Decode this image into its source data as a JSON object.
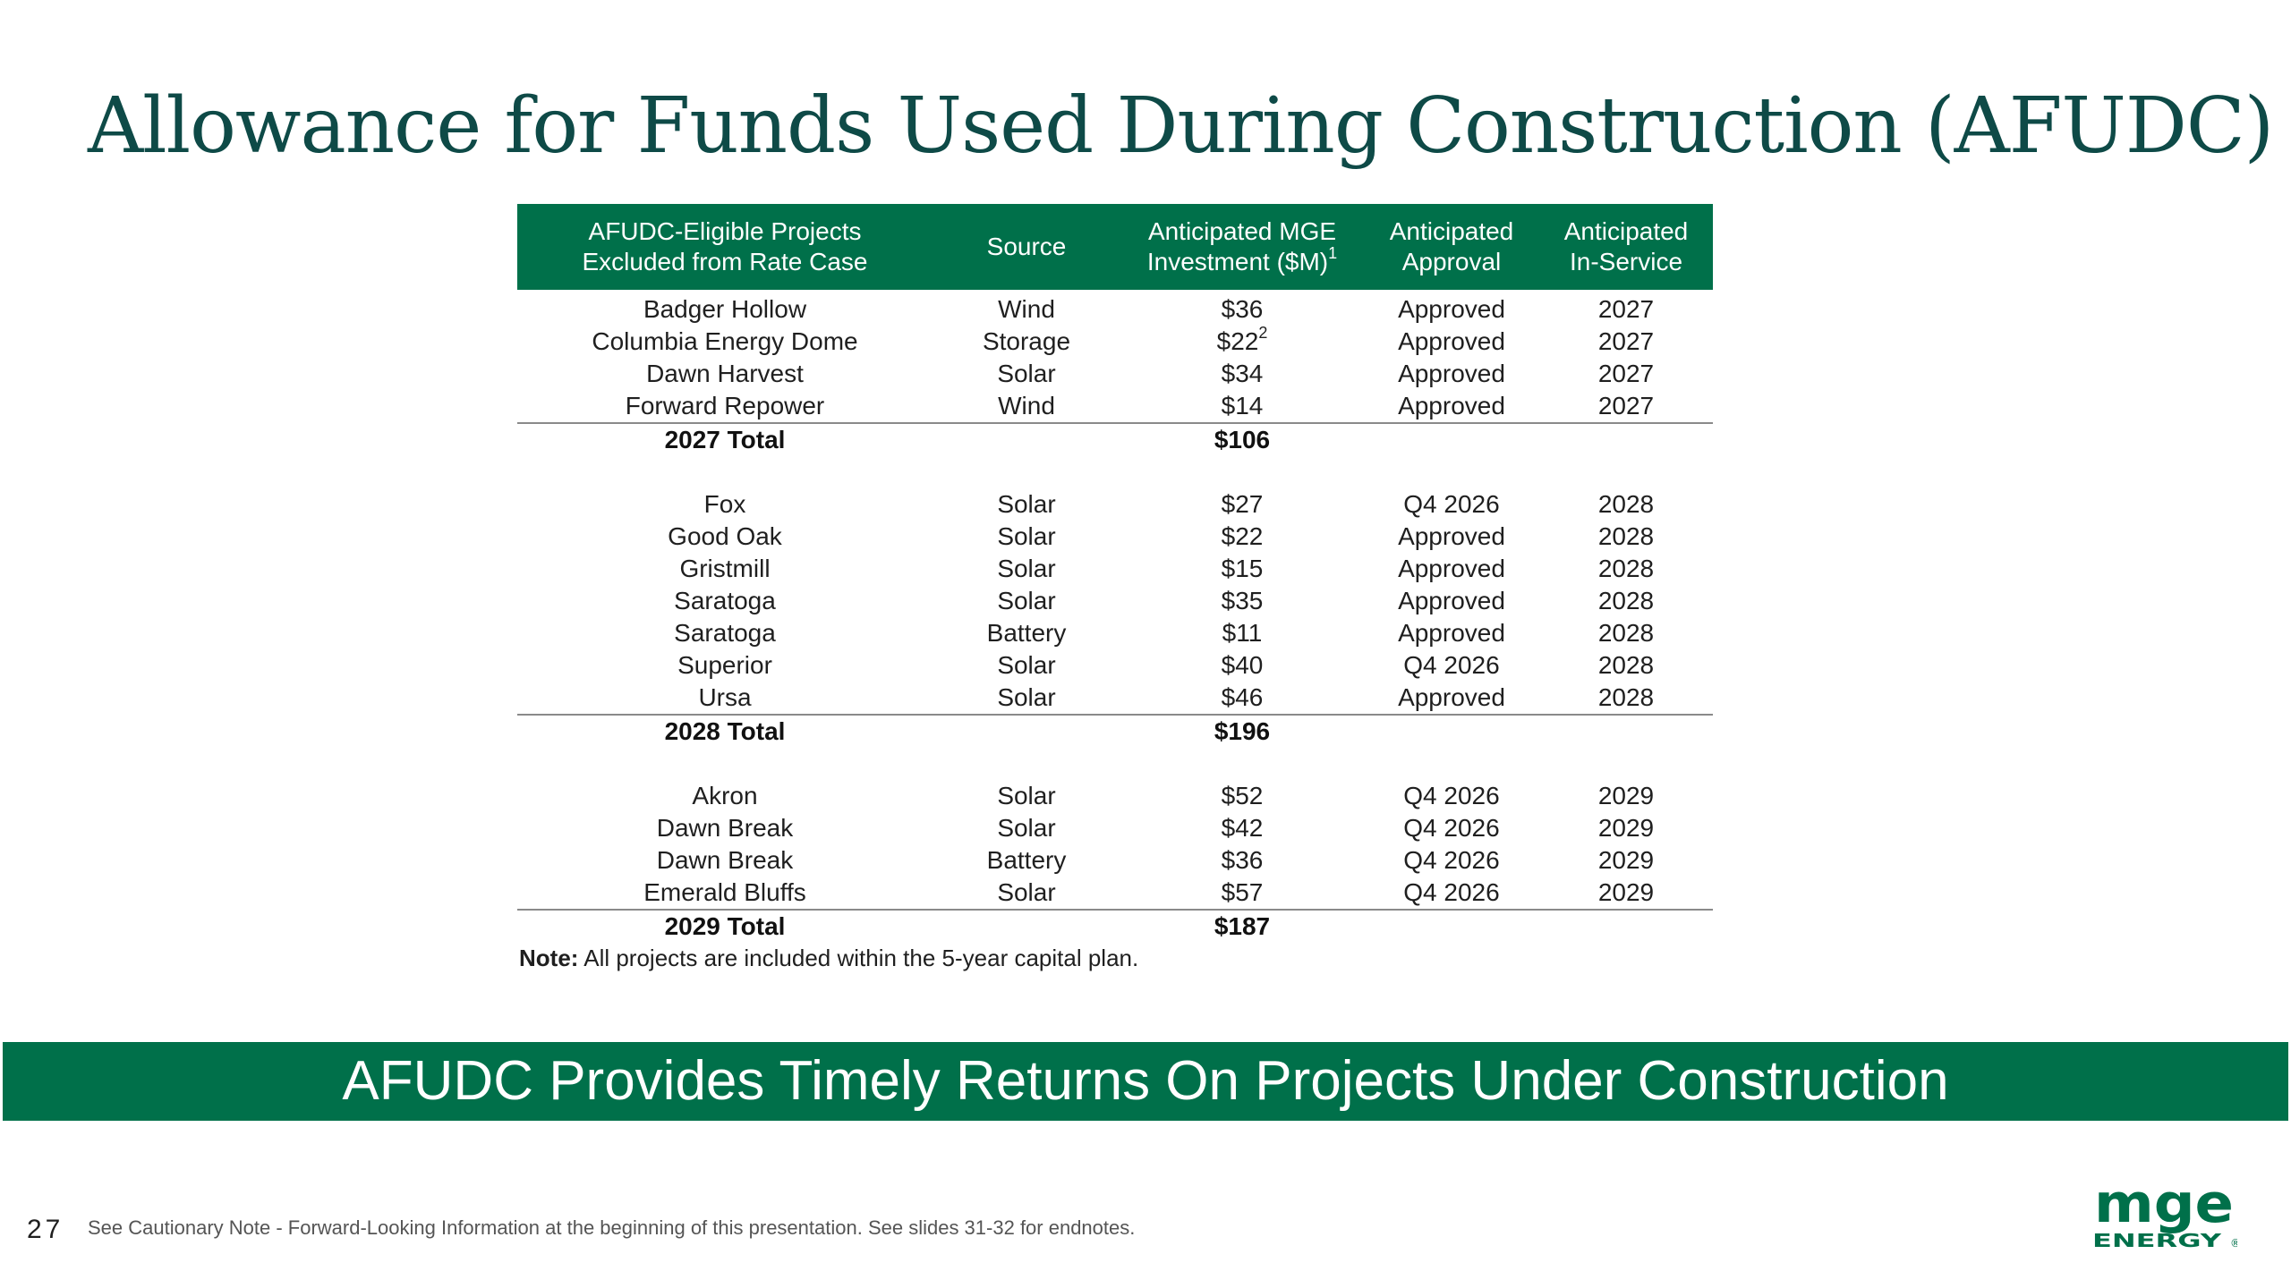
{
  "title": "Allowance for Funds Used During Construction (AFUDC)",
  "table": {
    "headers": {
      "project_line1": "AFUDC-Eligible Projects",
      "project_line2": "Excluded from Rate Case",
      "source": "Source",
      "investment_line1": "Anticipated MGE",
      "investment_line2": "Investment ($M)",
      "investment_sup": "1",
      "approval_line1": "Anticipated",
      "approval_line2": "Approval",
      "inservice_line1": "Anticipated",
      "inservice_line2": "In-Service"
    },
    "groups": [
      {
        "rows": [
          {
            "project": "Badger Hollow",
            "source": "Wind",
            "investment": "$36",
            "investment_sup": "",
            "approval": "Approved",
            "in_service": "2027"
          },
          {
            "project": "Columbia Energy Dome",
            "source": "Storage",
            "investment": "$22",
            "investment_sup": "2",
            "approval": "Approved",
            "in_service": "2027"
          },
          {
            "project": "Dawn Harvest",
            "source": "Solar",
            "investment": "$34",
            "investment_sup": "",
            "approval": "Approved",
            "in_service": "2027"
          },
          {
            "project": "Forward Repower",
            "source": "Wind",
            "investment": "$14",
            "investment_sup": "",
            "approval": "Approved",
            "in_service": "2027"
          }
        ],
        "total_label": "2027 Total",
        "total_value": "$106"
      },
      {
        "rows": [
          {
            "project": "Fox",
            "source": "Solar",
            "investment": "$27",
            "investment_sup": "",
            "approval": "Q4 2026",
            "in_service": "2028"
          },
          {
            "project": "Good Oak",
            "source": "Solar",
            "investment": "$22",
            "investment_sup": "",
            "approval": "Approved",
            "in_service": "2028"
          },
          {
            "project": "Gristmill",
            "source": "Solar",
            "investment": "$15",
            "investment_sup": "",
            "approval": "Approved",
            "in_service": "2028"
          },
          {
            "project": "Saratoga",
            "source": "Solar",
            "investment": "$35",
            "investment_sup": "",
            "approval": "Approved",
            "in_service": "2028"
          },
          {
            "project": "Saratoga",
            "source": "Battery",
            "investment": "$11",
            "investment_sup": "",
            "approval": "Approved",
            "in_service": "2028"
          },
          {
            "project": "Superior",
            "source": "Solar",
            "investment": "$40",
            "investment_sup": "",
            "approval": "Q4 2026",
            "in_service": "2028"
          },
          {
            "project": "Ursa",
            "source": "Solar",
            "investment": "$46",
            "investment_sup": "",
            "approval": "Approved",
            "in_service": "2028"
          }
        ],
        "total_label": "2028 Total",
        "total_value": "$196"
      },
      {
        "rows": [
          {
            "project": "Akron",
            "source": "Solar",
            "investment": "$52",
            "investment_sup": "",
            "approval": "Q4 2026",
            "in_service": "2029"
          },
          {
            "project": "Dawn Break",
            "source": "Solar",
            "investment": "$42",
            "investment_sup": "",
            "approval": "Q4 2026",
            "in_service": "2029"
          },
          {
            "project": "Dawn Break",
            "source": "Battery",
            "investment": "$36",
            "investment_sup": "",
            "approval": "Q4 2026",
            "in_service": "2029"
          },
          {
            "project": "Emerald Bluffs",
            "source": "Solar",
            "investment": "$57",
            "investment_sup": "",
            "approval": "Q4 2026",
            "in_service": "2029"
          }
        ],
        "total_label": "2029 Total",
        "total_value": "$187"
      }
    ]
  },
  "note": {
    "label": "Note:",
    "text": " All projects are included within the 5-year capital plan."
  },
  "banner": "AFUDC Provides Timely Returns On Projects Under Construction",
  "page_number": "27",
  "footnote": "See Cautionary Note - Forward-Looking Information at the beginning of this presentation. See slides 31-32 for endnotes.",
  "logo": {
    "line1": "mge",
    "line2": "ENERGY",
    "mark": "®"
  },
  "colors": {
    "accent": "#00704a",
    "title": "#0e4a47"
  },
  "icons": {
    "logo": "mge-energy-logo"
  }
}
